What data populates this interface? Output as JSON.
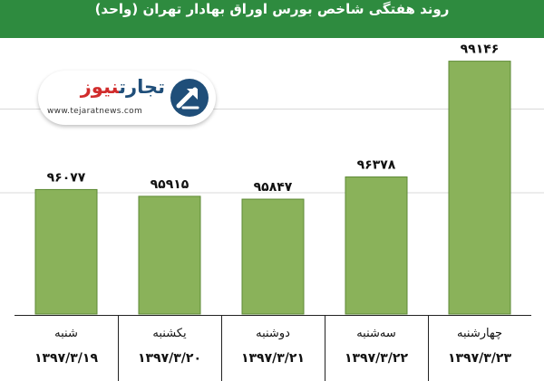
{
  "header": {
    "title": "روند هفتگی شاخص بورس اوراق بهادار تهران (واحد)"
  },
  "logo": {
    "name_part1": "تجارت",
    "name_part2": "نیوز",
    "url": "www.tejaratnews.com",
    "icon": "tejaratnews-logo-icon"
  },
  "colors": {
    "header": "#2e8b3f",
    "bar_fill": "#8ab25a",
    "bar_stroke": "#5e8a36",
    "logo_blue": "#1f4e79",
    "logo_red": "#d12c2c"
  },
  "chart_data": {
    "type": "bar",
    "title": "روند هفتگی شاخص بورس اوراق بهادار تهران (واحد)",
    "categories": [
      "شنبه",
      "یکشنبه",
      "دوشنبه",
      "سه‌شنبه",
      "چهارشنبه"
    ],
    "dates": [
      "۱۳۹۷/۳/۱۹",
      "۱۳۹۷/۳/۲۰",
      "۱۳۹۷/۳/۲۱",
      "۱۳۹۷/۳/۲۲",
      "۱۳۹۷/۳/۲۳"
    ],
    "values": [
      96077,
      95915,
      95847,
      96378,
      99146
    ],
    "value_labels": [
      "۹۶۰۷۷",
      "۹۵۹۱۵",
      "۹۵۸۴۷",
      "۹۶۳۷۸",
      "۹۹۱۴۶"
    ],
    "ylim": [
      93100,
      99700
    ],
    "grid": true,
    "xlabel": "",
    "ylabel": ""
  }
}
